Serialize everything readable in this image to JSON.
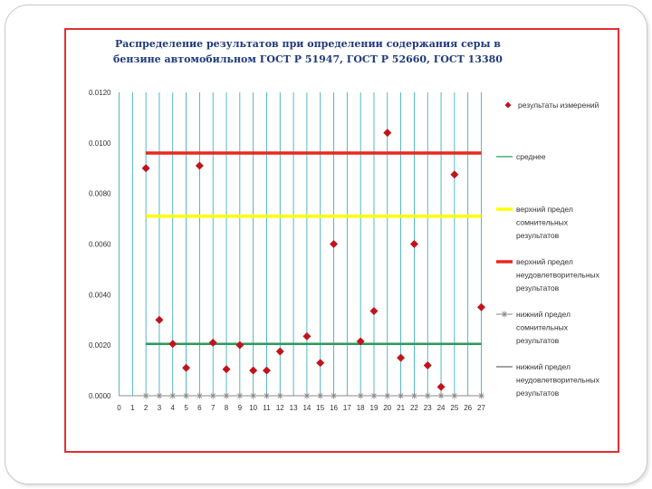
{
  "title_line1": "Распределение результатов при определении содержания серы в",
  "title_line2": "бензине автомобильном ГОСТ Р 51947, ГОСТ Р 52660, ГОСТ 13380",
  "colors": {
    "points": "#c0141c",
    "mean": "#2a9a5a",
    "upper_doubtful": "#ffff00",
    "upper_unsatisfactory": "#e8281e",
    "lower_doubtful": "#8a8a8a",
    "lower_unsatisfactory": "#444444",
    "grid": "#2aa6b8",
    "frame": "#e03030"
  },
  "chart_data": {
    "type": "scatter",
    "xlim": [
      0,
      27
    ],
    "ylim": [
      0,
      0.012
    ],
    "x_ticks": [
      0,
      1,
      2,
      3,
      4,
      5,
      6,
      7,
      8,
      9,
      10,
      11,
      12,
      13,
      14,
      15,
      16,
      17,
      18,
      19,
      20,
      21,
      22,
      23,
      24,
      25,
      26,
      27
    ],
    "y_ticks": [
      0,
      0.002,
      0.004,
      0.006,
      0.008,
      0.01,
      0.012
    ],
    "y_tick_labels": [
      "0.0000",
      "0.0020",
      "0.0040",
      "0.0060",
      "0.0080",
      "0.0100",
      "0.0120"
    ],
    "grid_vertical": true,
    "grid_horizontal": false,
    "legend_position": "right",
    "series": [
      {
        "name": "результаты измерений",
        "kind": "points",
        "points": [
          [
            2,
            0.009
          ],
          [
            3,
            0.003
          ],
          [
            4,
            0.00205
          ],
          [
            5,
            0.0011
          ],
          [
            6,
            0.0091
          ],
          [
            7,
            0.0021
          ],
          [
            8,
            0.00105
          ],
          [
            9,
            0.002
          ],
          [
            10,
            0.001
          ],
          [
            11,
            0.001
          ],
          [
            12,
            0.00175
          ],
          [
            14,
            0.00235
          ],
          [
            15,
            0.0013
          ],
          [
            16,
            0.006
          ],
          [
            18,
            0.00215
          ],
          [
            19,
            0.00335
          ],
          [
            20,
            0.0104
          ],
          [
            21,
            0.0015
          ],
          [
            22,
            0.006
          ],
          [
            23,
            0.0012
          ],
          [
            24,
            0.00035
          ],
          [
            25,
            0.00875
          ],
          [
            27,
            0.0035
          ]
        ]
      },
      {
        "name": "среднее",
        "kind": "line",
        "y": 0.00205,
        "x_range": [
          2,
          27
        ]
      },
      {
        "name": "верхний предел сомнительных результатов",
        "label_lines": [
          "верхний предел",
          "сомнительных",
          "результатов"
        ],
        "kind": "line",
        "y": 0.0071,
        "x_range": [
          2,
          27
        ]
      },
      {
        "name": "верхний предел неудовлетворительных результатов",
        "label_lines": [
          "верхний предел",
          "неудовлетворительных",
          "результатов"
        ],
        "kind": "line",
        "y": 0.0096,
        "x_range": [
          2,
          27
        ]
      },
      {
        "name": "нижний предел сомнительных результатов",
        "label_lines": [
          "нижний предел",
          "сомнительных",
          "результатов"
        ],
        "kind": "line-markers",
        "y": 0,
        "x_range": [
          2,
          27
        ]
      },
      {
        "name": "нижний предел неудовлетворительных результатов",
        "label_lines": [
          "нижний предел",
          "неудовлетворительных",
          "результатов"
        ],
        "kind": "line",
        "y": 0,
        "x_range": [
          2,
          27
        ]
      }
    ]
  }
}
